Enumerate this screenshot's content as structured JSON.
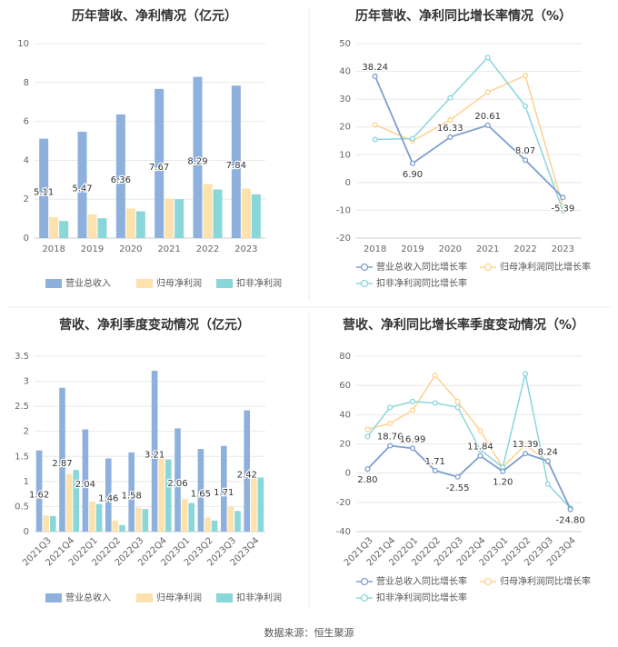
{
  "source_text": "数据来源：恒生聚源",
  "colors": {
    "revenue": "#8eb0dc",
    "profit": "#fde2ae",
    "deducted": "#8ad7da",
    "revenue_line": "#7d9fd0",
    "profit_line": "#fdd28f",
    "deducted_line": "#8ad6dc",
    "grid": "#e8e8e8",
    "axis": "#999999"
  },
  "chart_data": [
    {
      "type": "bar",
      "title": "历年营收、净利情况（亿元）",
      "categories": [
        "2018",
        "2019",
        "2020",
        "2021",
        "2022",
        "2023"
      ],
      "series": [
        {
          "name": "营业总收入",
          "values": [
            5.11,
            5.47,
            6.36,
            7.67,
            8.29,
            7.84
          ]
        },
        {
          "name": "归母净利润",
          "values": [
            1.08,
            1.22,
            1.52,
            2.03,
            2.78,
            2.55
          ]
        },
        {
          "name": "扣非净利润",
          "values": [
            0.88,
            1.02,
            1.38,
            2.0,
            2.5,
            2.25
          ]
        }
      ],
      "data_labels": [
        "5.11",
        "5.47",
        "6.36",
        "7.67",
        "8.29",
        "7.84"
      ],
      "ylim": [
        0,
        10
      ],
      "yticks": [
        "0",
        "2",
        "4",
        "6",
        "8",
        "10"
      ],
      "grid": true,
      "legend": "bottom"
    },
    {
      "type": "line",
      "title": "历年营收、净利同比增长率情况（%）",
      "categories": [
        "2018",
        "2019",
        "2020",
        "2021",
        "2022",
        "2023"
      ],
      "series": [
        {
          "name": "营业总收入同比增长率",
          "values": [
            38.24,
            6.9,
            16.33,
            20.61,
            8.07,
            -5.39
          ]
        },
        {
          "name": "归母净利润同比增长率",
          "values": [
            20.8,
            15.0,
            22.5,
            32.5,
            38.5,
            -8.5
          ]
        },
        {
          "name": "扣非净利润同比增长率",
          "values": [
            15.5,
            15.8,
            30.5,
            45.0,
            27.5,
            -10.2
          ]
        }
      ],
      "data_labels": [
        "38.24",
        "6.90",
        "16.33",
        "20.61",
        "8.07",
        "-5.39"
      ],
      "ylim": [
        -20,
        50
      ],
      "yticks": [
        "-20",
        "-10",
        "0",
        "10",
        "20",
        "30",
        "40",
        "50"
      ],
      "grid": true,
      "legend": "bottom"
    },
    {
      "type": "bar",
      "title": "营收、净利季度变动情况（亿元）",
      "categories": [
        "2021Q3",
        "2021Q4",
        "2022Q1",
        "2022Q2",
        "2022Q3",
        "2022Q4",
        "2023Q1",
        "2023Q2",
        "2023Q3",
        "2023Q4"
      ],
      "series": [
        {
          "name": "营业总收入",
          "values": [
            1.62,
            2.87,
            2.04,
            1.46,
            1.58,
            3.21,
            2.06,
            1.65,
            1.71,
            2.42
          ]
        },
        {
          "name": "归母净利润",
          "values": [
            0.32,
            1.15,
            0.6,
            0.22,
            0.48,
            1.5,
            0.65,
            0.28,
            0.5,
            1.1
          ]
        },
        {
          "name": "扣非净利润",
          "values": [
            0.31,
            1.23,
            0.55,
            0.13,
            0.45,
            1.44,
            0.57,
            0.22,
            0.41,
            1.08
          ]
        }
      ],
      "data_labels": [
        "1.62",
        "2.87",
        "2.04",
        "1.46",
        "1.58",
        "3.21",
        "2.06",
        "1.65",
        "1.71",
        "2.42"
      ],
      "ylim": [
        0,
        3.5
      ],
      "yticks": [
        "0",
        "0.5",
        "1",
        "1.5",
        "2",
        "2.5",
        "3",
        "3.5"
      ],
      "grid": true,
      "legend": "bottom"
    },
    {
      "type": "line",
      "title": "营收、净利同比增长率季度变动情况（%）",
      "categories": [
        "2021Q3",
        "2021Q4",
        "2022Q1",
        "2022Q2",
        "2022Q3",
        "2022Q4",
        "2023Q1",
        "2023Q2",
        "2023Q3",
        "2023Q4"
      ],
      "series": [
        {
          "name": "营业总收入同比增长率",
          "values": [
            2.8,
            18.76,
            16.99,
            1.71,
            -2.55,
            11.84,
            1.2,
            13.39,
            8.24,
            -24.8
          ]
        },
        {
          "name": "归母净利润同比增长率",
          "values": [
            30.0,
            34.0,
            43.0,
            67.0,
            49.0,
            29.0,
            4.0,
            19.5,
            7.5,
            -24.0
          ]
        },
        {
          "name": "扣非净利润同比增长率",
          "values": [
            25.0,
            45.0,
            49.0,
            48.0,
            45.0,
            16.0,
            4.0,
            68.0,
            -7.5,
            -24.0
          ]
        }
      ],
      "data_labels": [
        "2.80",
        "18.76",
        "16.99",
        "1.71",
        "-2.55",
        "11.84",
        "1.20",
        "13.39",
        "8.24",
        "-24.80"
      ],
      "ylim": [
        -40,
        80
      ],
      "yticks": [
        "-40",
        "-20",
        "0",
        "20",
        "40",
        "60",
        "80"
      ],
      "grid": true,
      "legend": "bottom"
    }
  ]
}
